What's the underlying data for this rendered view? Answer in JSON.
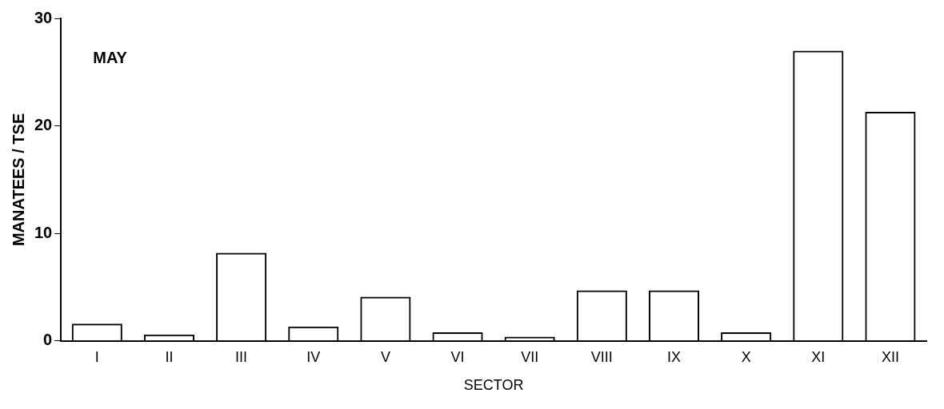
{
  "chart_data": {
    "type": "bar",
    "ylabel": "MANATEES / TSE",
    "xlabel": "SECTOR",
    "annotations": [
      "MAY"
    ],
    "categories": [
      "I",
      "II",
      "III",
      "IV",
      "V",
      "VI",
      "VII",
      "VIII",
      "IX",
      "X",
      "XI",
      "XII"
    ],
    "values": [
      1.6,
      0.6,
      8.2,
      1.35,
      4.1,
      0.8,
      0.4,
      4.7,
      4.7,
      0.8,
      27,
      21.3
    ],
    "color": "#000000",
    "ylim": [
      0,
      30
    ],
    "yticks": [
      0,
      10,
      20,
      30
    ],
    "grid": false,
    "legend": false
  }
}
